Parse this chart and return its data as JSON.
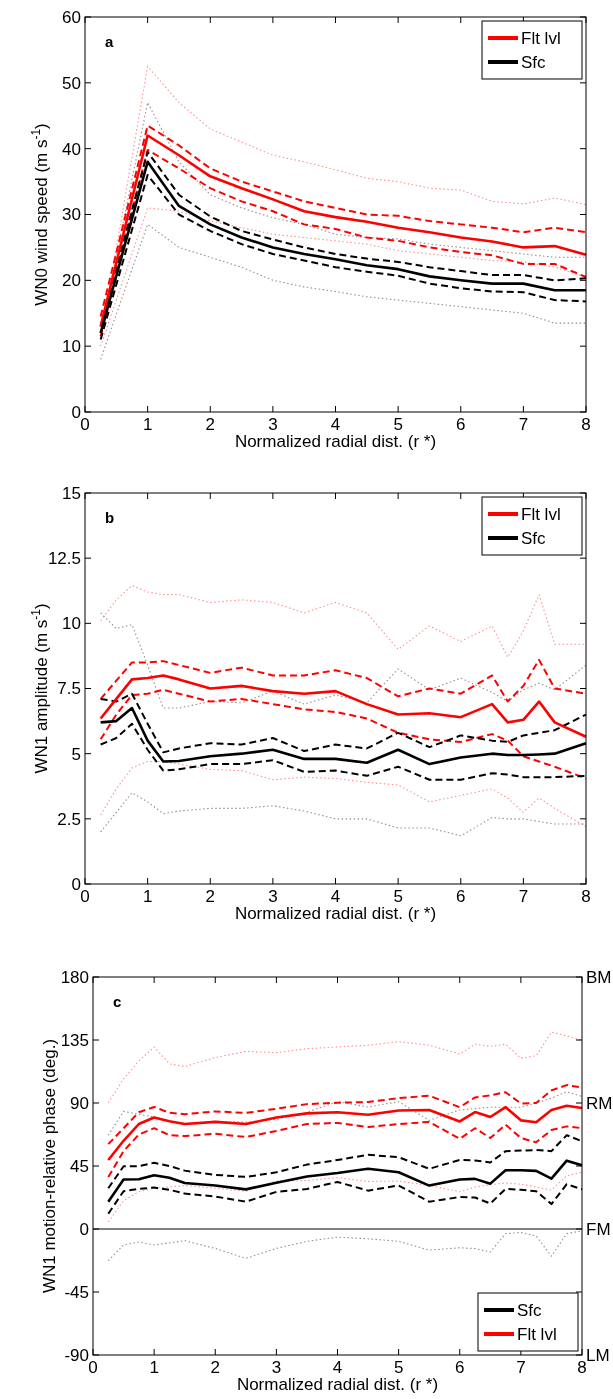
{
  "chart_data": [
    {
      "type": "line",
      "annotations": [
        "a"
      ],
      "xlabel": "Normalized radial dist. (r *)",
      "ylabel": "WN0 wind speed (m s$^{-1}$)",
      "xlim": [
        0,
        8
      ],
      "xticks": [
        0,
        1,
        2,
        3,
        4,
        5,
        6,
        7,
        8
      ],
      "ylim": [
        0,
        60
      ],
      "yticks": [
        0,
        10,
        20,
        30,
        40,
        50,
        60
      ],
      "legend": "top right",
      "x": [
        0.25,
        1,
        1.5,
        2,
        2.5,
        3,
        3.5,
        4,
        4.5,
        5,
        5.5,
        6,
        6.5,
        7,
        7.5,
        8
      ],
      "series": [
        {
          "color": "#ff9090",
          "line_style": "dotted",
          "values": [
            11,
            52.5,
            47,
            43,
            41,
            39,
            38,
            36.8,
            35.5,
            35,
            34,
            33.7,
            32,
            31.6,
            32.5,
            31.5
          ]
        },
        {
          "color": "#ff9090",
          "line_style": "dotted",
          "values": [
            10,
            31,
            30.5,
            29,
            28,
            27,
            26.5,
            26,
            25.5,
            24.5,
            24,
            23.5,
            23,
            22.8,
            22,
            20.5
          ]
        },
        {
          "color": "#909090",
          "line_style": "dotted",
          "values": [
            12,
            47,
            38,
            33,
            31,
            29.5,
            28.5,
            27,
            26.5,
            26.3,
            25.5,
            25,
            24.5,
            24,
            23.5,
            23.5
          ]
        },
        {
          "color": "#909090",
          "line_style": "dotted",
          "values": [
            8,
            28.5,
            25,
            23.5,
            22,
            20,
            19,
            18.3,
            17.5,
            17,
            16.5,
            16,
            15.5,
            15,
            13.5,
            13.5
          ]
        },
        {
          "color": "#ff0000",
          "line_style": "dashed",
          "values": [
            14.5,
            43.5,
            40.5,
            37,
            35,
            33.5,
            32,
            31,
            30,
            29.8,
            29,
            28.5,
            28,
            27.3,
            28,
            27.3
          ]
        },
        {
          "color": "#ff0000",
          "line_style": "dashed",
          "values": [
            11.5,
            39.8,
            37,
            34,
            32,
            30.5,
            28.5,
            27.8,
            26.5,
            26,
            25,
            24.3,
            23.8,
            22.5,
            22.5,
            20.5
          ]
        },
        {
          "color": "#000000",
          "line_style": "dashed",
          "values": [
            13,
            39.5,
            33,
            29.7,
            27.5,
            26.2,
            25,
            24,
            23.3,
            22.8,
            22,
            21.4,
            20.8,
            20.8,
            20,
            20.3
          ]
        },
        {
          "color": "#000000",
          "line_style": "dashed",
          "values": [
            11,
            36,
            30,
            27.5,
            25.5,
            24,
            23,
            22,
            21.3,
            20.7,
            19.5,
            18.8,
            18.3,
            18.2,
            17,
            16.8
          ]
        },
        {
          "name": "Flt lvl",
          "color": "#ff0000",
          "line_style": "solid",
          "values": [
            13,
            42,
            39,
            35.8,
            34,
            32.3,
            30.5,
            29.6,
            28.9,
            28,
            27.3,
            26.5,
            25.9,
            25,
            25.2,
            23.9
          ]
        },
        {
          "name": "Sfc",
          "color": "#000000",
          "line_style": "solid",
          "values": [
            12,
            38,
            31.3,
            28.5,
            26.5,
            25,
            24,
            23.2,
            22.3,
            21.7,
            20.6,
            20,
            19.5,
            19.5,
            18.5,
            18.5
          ]
        }
      ]
    },
    {
      "type": "line",
      "annotations": [
        "b"
      ],
      "xlabel": "Normalized radial dist. (r *)",
      "ylabel": "WN1 amplitude (m s$^{-1}$)",
      "xlim": [
        0,
        8
      ],
      "xticks": [
        0,
        1,
        2,
        3,
        4,
        5,
        6,
        7,
        8
      ],
      "ylim": [
        0,
        15
      ],
      "yticks": [
        0,
        2.5,
        5,
        7.5,
        10,
        12.5,
        15
      ],
      "legend": "top right",
      "x": [
        0.25,
        0.5,
        0.75,
        1,
        1.25,
        1.5,
        2,
        2.5,
        3,
        3.5,
        4,
        4.5,
        5,
        5.5,
        6,
        6.5,
        6.75,
        7,
        7.25,
        7.5,
        8
      ],
      "series": [
        {
          "color": "#ff9090",
          "line_style": "dotted",
          "values": [
            10.1,
            10.9,
            11.45,
            11.2,
            11.1,
            11.1,
            10.8,
            10.9,
            10.8,
            10.4,
            10.8,
            10.4,
            9.0,
            9.9,
            9.3,
            9.9,
            8.7,
            9.7,
            11.1,
            9.2,
            9.2
          ]
        },
        {
          "color": "#ff9090",
          "line_style": "dotted",
          "values": [
            2.65,
            3.65,
            4.45,
            4.7,
            4.7,
            4.6,
            4.4,
            4.35,
            4.0,
            4.1,
            4.05,
            3.9,
            3.8,
            3.15,
            3.4,
            3.65,
            3.3,
            2.75,
            3.3,
            2.9,
            2.2
          ]
        },
        {
          "color": "#909090",
          "line_style": "dotted",
          "values": [
            10.4,
            9.8,
            9.95,
            8.4,
            6.75,
            6.75,
            7.0,
            6.95,
            7.4,
            6.9,
            7.25,
            6.95,
            8.25,
            7.45,
            7.9,
            7.35,
            7.0,
            7.45,
            7.7,
            7.45,
            8.4
          ]
        },
        {
          "color": "#909090",
          "line_style": "dotted",
          "values": [
            2.0,
            2.75,
            3.5,
            3.15,
            2.7,
            2.8,
            2.9,
            2.9,
            3.0,
            2.8,
            2.5,
            2.5,
            2.15,
            2.15,
            1.85,
            2.55,
            2.5,
            2.5,
            2.4,
            2.3,
            2.3
          ]
        },
        {
          "color": "#ff0000",
          "line_style": "dashed",
          "values": [
            7.1,
            7.8,
            8.5,
            8.5,
            8.55,
            8.4,
            8.1,
            8.3,
            8.0,
            8.0,
            8.2,
            7.9,
            7.2,
            7.5,
            7.3,
            8.0,
            7.0,
            7.6,
            8.6,
            7.5,
            7.3
          ]
        },
        {
          "color": "#ff0000",
          "line_style": "dashed",
          "values": [
            5.55,
            6.5,
            7.25,
            7.3,
            7.45,
            7.3,
            7.0,
            7.1,
            6.9,
            6.7,
            6.6,
            6.35,
            5.8,
            5.55,
            5.45,
            5.75,
            5.5,
            4.9,
            4.7,
            4.5,
            4.05
          ]
        },
        {
          "color": "#000000",
          "line_style": "dashed",
          "values": [
            7.1,
            7.0,
            7.3,
            6.15,
            5.05,
            5.2,
            5.4,
            5.35,
            5.6,
            5.1,
            5.35,
            5.2,
            5.8,
            5.25,
            5.7,
            5.5,
            5.45,
            5.7,
            5.8,
            5.9,
            6.5
          ]
        },
        {
          "color": "#000000",
          "line_style": "dashed",
          "values": [
            5.35,
            5.6,
            6.15,
            5.15,
            4.35,
            4.4,
            4.6,
            4.6,
            4.75,
            4.3,
            4.35,
            4.15,
            4.5,
            4.0,
            4.0,
            4.25,
            4.2,
            4.1,
            4.1,
            4.1,
            4.15
          ]
        },
        {
          "name": "Flt lvl",
          "color": "#ff0000",
          "line_style": "solid",
          "values": [
            6.35,
            7.1,
            7.85,
            7.9,
            8.0,
            7.85,
            7.5,
            7.6,
            7.4,
            7.3,
            7.4,
            6.9,
            6.5,
            6.55,
            6.4,
            6.9,
            6.2,
            6.3,
            7.0,
            6.2,
            5.65
          ]
        },
        {
          "name": "Sfc",
          "color": "#000000",
          "line_style": "solid",
          "values": [
            6.2,
            6.25,
            6.75,
            5.5,
            4.7,
            4.72,
            4.9,
            5.0,
            5.15,
            4.8,
            4.8,
            4.65,
            5.15,
            4.6,
            4.85,
            5.0,
            4.95,
            4.95,
            4.97,
            5.0,
            5.4
          ]
        }
      ]
    },
    {
      "type": "line",
      "annotations": [
        "c",
        "BM",
        "RM",
        "FM",
        "LM"
      ],
      "xlabel": "Normalized radial dist. (r *)",
      "ylabel": "WN1 motion-relative phase (deg.)",
      "xlim": [
        0,
        8
      ],
      "xticks": [
        0,
        1,
        2,
        3,
        4,
        5,
        6,
        7,
        8
      ],
      "ylim": [
        -90,
        180
      ],
      "yticks": [
        -90,
        -45,
        0,
        45,
        90,
        135,
        180
      ],
      "legend": "bottom right",
      "ref_lines": [
        {
          "axis": "y",
          "value": 0,
          "color": "#000000"
        }
      ],
      "x": [
        0.25,
        0.5,
        0.75,
        1,
        1.25,
        1.5,
        2,
        2.5,
        3,
        3.5,
        4,
        4.5,
        5,
        5.5,
        6,
        6.25,
        6.5,
        6.75,
        7,
        7.25,
        7.5,
        7.75,
        8
      ],
      "series": [
        {
          "color": "#ff9090",
          "line_style": "dotted",
          "values": [
            90.2,
            107.3,
            120,
            130,
            118,
            116,
            122.5,
            126.8,
            126,
            128.8,
            130,
            131.3,
            133.8,
            131.3,
            125,
            132,
            130.5,
            132,
            122,
            123.7,
            140.6,
            138,
            134.6
          ]
        },
        {
          "color": "#ff9090",
          "line_style": "dotted",
          "values": [
            5,
            20.3,
            26.6,
            29.1,
            30,
            31.1,
            29.1,
            27,
            34.2,
            34.6,
            36.7,
            34,
            34.2,
            31.1,
            26.6,
            30,
            31.6,
            32.9,
            32,
            30,
            27.8,
            38,
            40.5
          ]
        },
        {
          "color": "#909090",
          "line_style": "dotted",
          "values": [
            67,
            84,
            82,
            80,
            77,
            74.5,
            77,
            76.3,
            78.3,
            83.4,
            91,
            87.1,
            91,
            77.6,
            85,
            86,
            87,
            87,
            87,
            90,
            93.4,
            98,
            94.7
          ]
        },
        {
          "color": "#909090",
          "line_style": "dotted",
          "values": [
            -22.6,
            -11.4,
            -9.3,
            -11.4,
            -10,
            -8.3,
            -13.9,
            -21,
            -13.9,
            -8.8,
            -5.8,
            -7,
            -8.8,
            -15.1,
            -13.4,
            -14,
            -16.4,
            -3.3,
            -2.5,
            -5,
            -19.4,
            -3.3,
            -1.3
          ]
        },
        {
          "color": "#ff0000",
          "line_style": "dashed",
          "values": [
            60.6,
            72,
            83.4,
            87.1,
            83,
            82,
            84,
            82.9,
            85.9,
            89.2,
            90.2,
            90.7,
            93.5,
            95.2,
            87,
            94,
            95.5,
            97.7,
            89.7,
            90,
            99,
            102.8,
            101
          ]
        },
        {
          "color": "#ff0000",
          "line_style": "dashed",
          "values": [
            37.2,
            55.6,
            67.5,
            72,
            67,
            66.4,
            68,
            65.7,
            70,
            75,
            75.8,
            72.8,
            75,
            76.5,
            64.4,
            72,
            65,
            74.5,
            65,
            61.9,
            70.7,
            73.3,
            72
          ]
        },
        {
          "color": "#000000",
          "line_style": "dashed",
          "values": [
            29.1,
            44.8,
            44.8,
            47.3,
            45,
            41.7,
            38.7,
            37.2,
            40.5,
            46,
            49.3,
            53,
            51.3,
            43,
            49.3,
            49,
            47.5,
            55.6,
            56,
            56.4,
            55.6,
            67,
            62.7
          ]
        },
        {
          "color": "#000000",
          "line_style": "dashed",
          "values": [
            10.9,
            27,
            28.6,
            29.6,
            28,
            25.3,
            23.2,
            19.5,
            26.5,
            28.6,
            33.6,
            27.4,
            31.1,
            19.5,
            22.8,
            22.5,
            18.2,
            28.6,
            28,
            27,
            17.8,
            32,
            28.4
          ]
        },
        {
          "name": "Sfc",
          "color": "#000000",
          "line_style": "solid",
          "values": [
            19.5,
            35.4,
            35.5,
            38.4,
            36.6,
            32.9,
            31.1,
            28.3,
            33,
            37.5,
            40,
            43,
            40.5,
            31,
            35.4,
            35.8,
            32.4,
            42,
            42,
            41.5,
            36,
            48.8,
            45.5
          ]
        },
        {
          "name": "Flt lvl",
          "color": "#ff0000",
          "line_style": "solid",
          "values": [
            49.3,
            63,
            75,
            79.6,
            77,
            75,
            76.5,
            75,
            79.6,
            82.6,
            83.4,
            81.6,
            84.6,
            85,
            76.8,
            83.5,
            80,
            87,
            77.6,
            76.3,
            85,
            88,
            86.4
          ]
        }
      ]
    }
  ]
}
